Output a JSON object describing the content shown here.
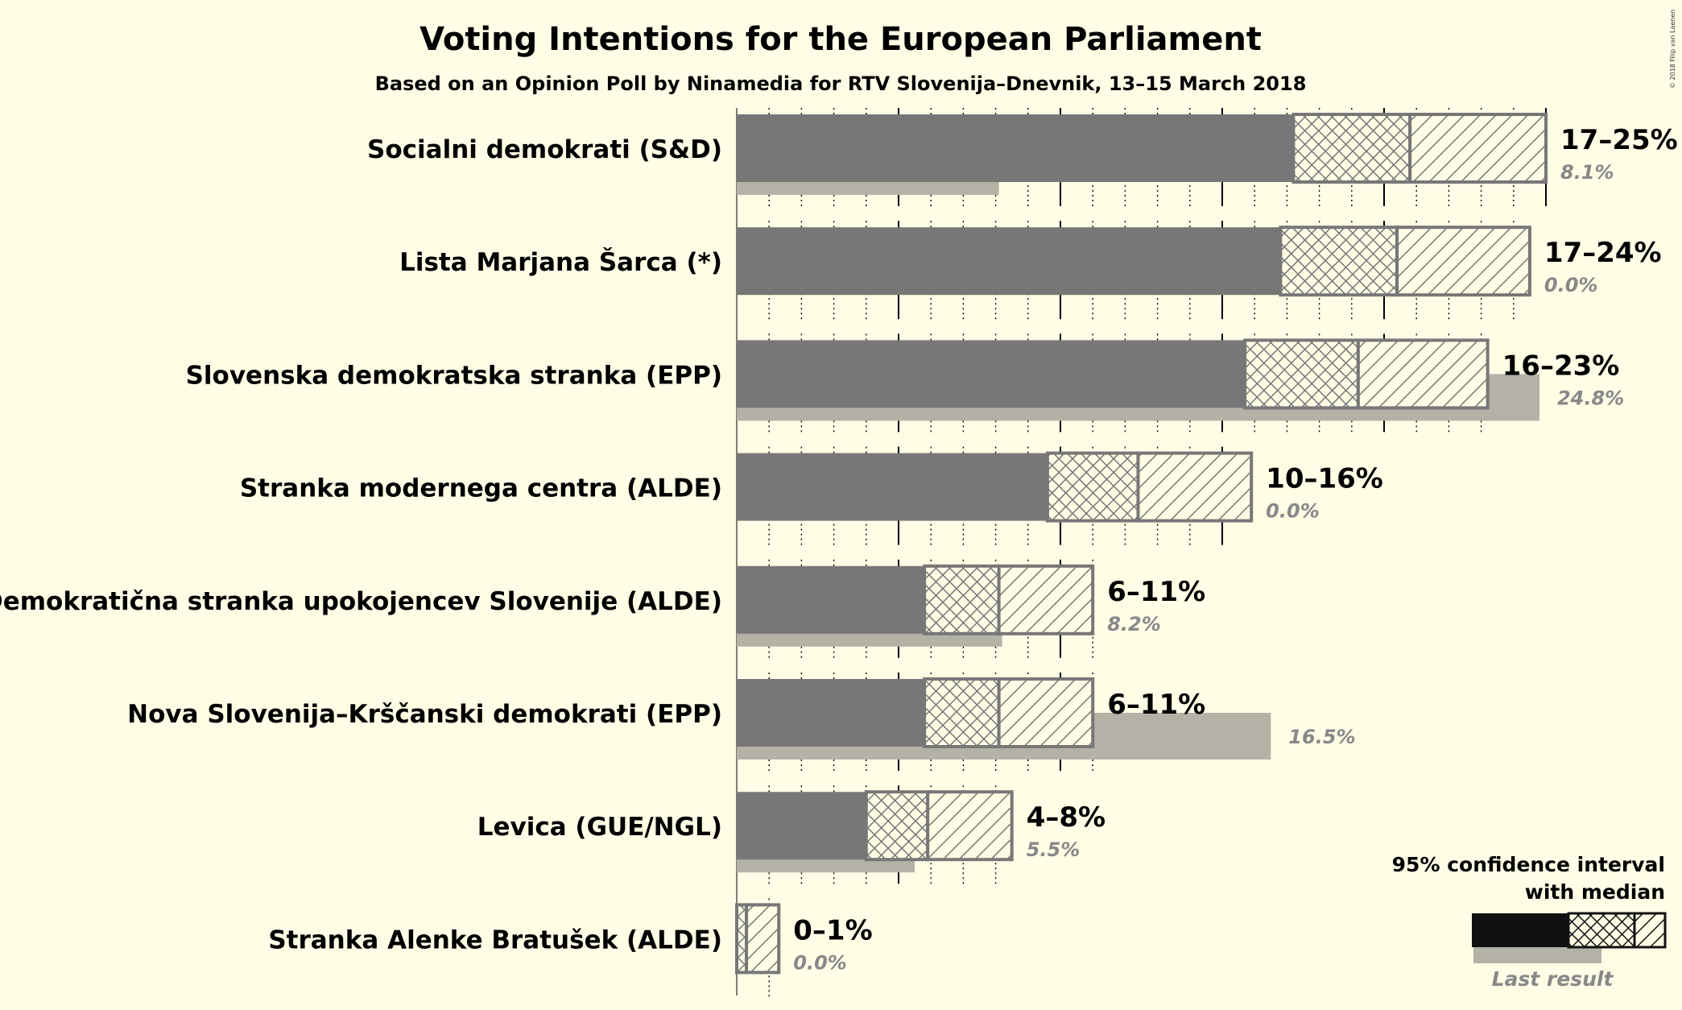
{
  "chart_data": {
    "type": "bar",
    "title": "Voting Intentions for the European Parliament",
    "subtitle": "Based on an Opinion Poll by Ninamedia for RTV Slovenija–Dnevnik, 13–15 March 2018",
    "copyright": "© 2018 Filip van Laenen",
    "xlim": [
      0,
      25
    ],
    "grid": true,
    "legend": {
      "position": "bottom-right",
      "ci_label_line1": "95% confidence interval",
      "ci_label_line2": "with median",
      "last_result_label": "Last result"
    },
    "colors": {
      "bar": "#777777",
      "hatch_stroke": "#777777",
      "last_result": "#B4B2A6",
      "legend_bar": "#111111",
      "background": "#FFFDE6"
    },
    "parties": [
      {
        "name": "Socialni demokrati (S&D)",
        "range_label": "17–25%",
        "last_label": "8.1%",
        "ci_low": 17.2,
        "median": 20.8,
        "ci_high": 25.0,
        "last": 8.1
      },
      {
        "name": "Lista Marjana Šarca (*)",
        "range_label": "17–24%",
        "last_label": "0.0%",
        "ci_low": 16.8,
        "median": 20.4,
        "ci_high": 24.5,
        "last": 0.0
      },
      {
        "name": "Slovenska demokratska stranka (EPP)",
        "range_label": "16–23%",
        "last_label": "24.8%",
        "ci_low": 15.7,
        "median": 19.2,
        "ci_high": 23.2,
        "last": 24.8
      },
      {
        "name": "Stranka modernega centra (ALDE)",
        "range_label": "10–16%",
        "last_label": "0.0%",
        "ci_low": 9.6,
        "median": 12.4,
        "ci_high": 15.9,
        "last": 0.0
      },
      {
        "name": "Demokratična stranka upokojencev Slovenije (ALDE)",
        "range_label": "6–11%",
        "last_label": "8.2%",
        "ci_low": 5.8,
        "median": 8.1,
        "ci_high": 11.0,
        "last": 8.2
      },
      {
        "name": "Nova Slovenija–Krščanski demokrati (EPP)",
        "range_label": "6–11%",
        "last_label": "16.5%",
        "ci_low": 5.8,
        "median": 8.1,
        "ci_high": 11.0,
        "last": 16.5
      },
      {
        "name": "Levica (GUE/NGL)",
        "range_label": "4–8%",
        "last_label": "5.5%",
        "ci_low": 4.0,
        "median": 5.9,
        "ci_high": 8.5,
        "last": 5.5
      },
      {
        "name": "Stranka Alenke Bratušek (ALDE)",
        "range_label": "0–1%",
        "last_label": "0.0%",
        "ci_low": 0.0,
        "median": 0.3,
        "ci_high": 1.3,
        "last": 0.0
      }
    ]
  }
}
